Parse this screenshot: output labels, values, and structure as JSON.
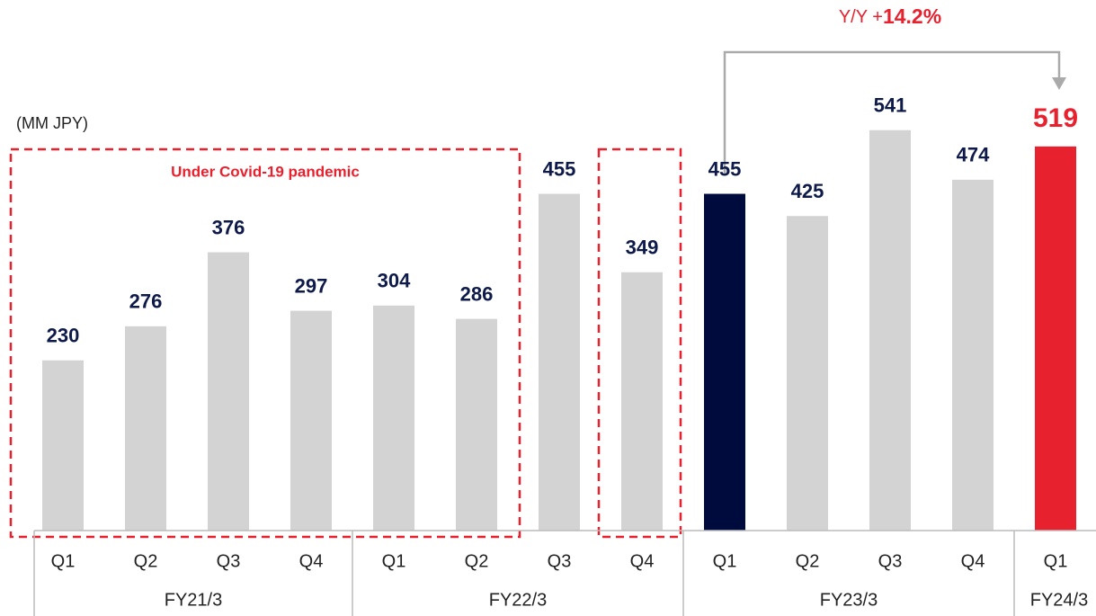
{
  "chart_data": {
    "type": "bar",
    "unit": "(MM JPY)",
    "box_label": "Under Covid-19 pandemic",
    "annotation": [
      "Y/Y +",
      "14.2%"
    ],
    "categories": [
      "Q1",
      "Q2",
      "Q3",
      "Q4",
      "Q1",
      "Q2",
      "Q3",
      "Q4",
      "Q1",
      "Q2",
      "Q3",
      "Q4",
      "Q1"
    ],
    "groups": [
      "FY21/3",
      "FY22/3",
      "FY23/3",
      "FY24/3"
    ],
    "values": [
      230,
      276,
      376,
      297,
      304,
      286,
      455,
      349,
      455,
      425,
      541,
      474,
      519
    ],
    "colors": [
      "#d3d3d3",
      "#d3d3d3",
      "#d3d3d3",
      "#d3d3d3",
      "#d3d3d3",
      "#d3d3d3",
      "#d3d3d3",
      "#d3d3d3",
      "#000b3d",
      "#d3d3d3",
      "#d3d3d3",
      "#d3d3d3",
      "#e8212e"
    ]
  }
}
